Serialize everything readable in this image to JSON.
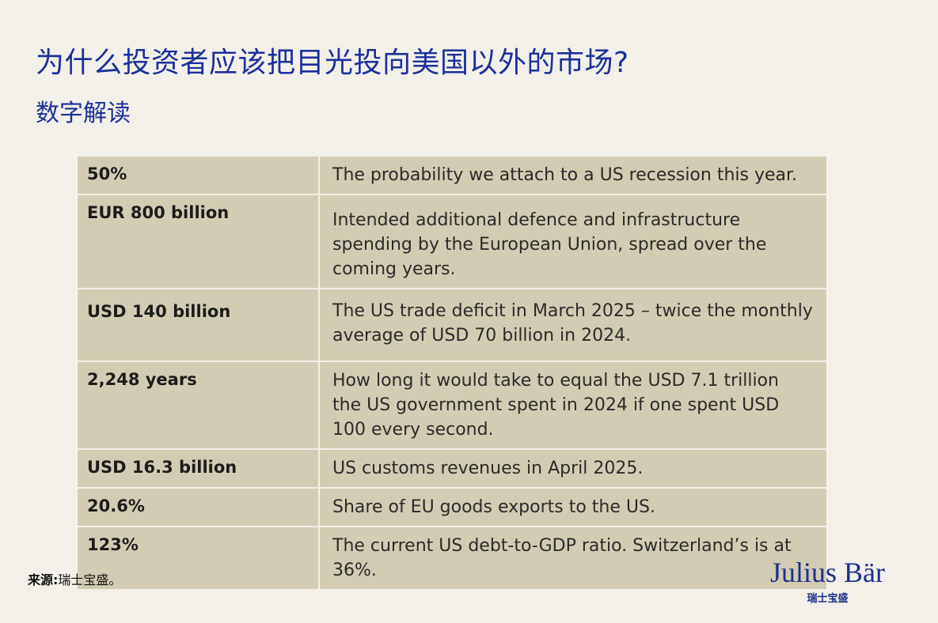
{
  "header": {
    "title": "为什么投资者应该把目光投向美国以外的市场?",
    "subtitle": "数字解读"
  },
  "table": {
    "rows": [
      {
        "figure": "50%",
        "description": "The probability we attach to a US recession this year."
      },
      {
        "figure": "EUR 800 billion",
        "description": "Intended additional defence and infrastructure spending by the European Union, spread over the coming years."
      },
      {
        "figure": "USD 140 billion",
        "description": "The US trade deficit in March 2025 – twice the monthly average of USD 70 billion in 2024."
      },
      {
        "figure": "2,248 years",
        "description": "How long it would take to equal the USD 7.1 trillion the US government spent in 2024 if one spent USD 100 every second."
      },
      {
        "figure": "USD 16.3 billion",
        "description": "US customs revenues in April 2025."
      },
      {
        "figure": "20.6%",
        "description": "Share of EU goods exports to the US."
      },
      {
        "figure": "123%",
        "description": "The current US debt-to-GDP ratio. Switzerland’s is at 36%."
      }
    ]
  },
  "footer": {
    "source_label": "来源:",
    "source_value": "瑞士宝盛。",
    "logo_text": "Julius Bär",
    "logo_subtext": "瑞士宝盛"
  },
  "colors": {
    "accent": "#1d2f9c",
    "cell": "#d3ccb4",
    "background": "#f2f0e9"
  }
}
